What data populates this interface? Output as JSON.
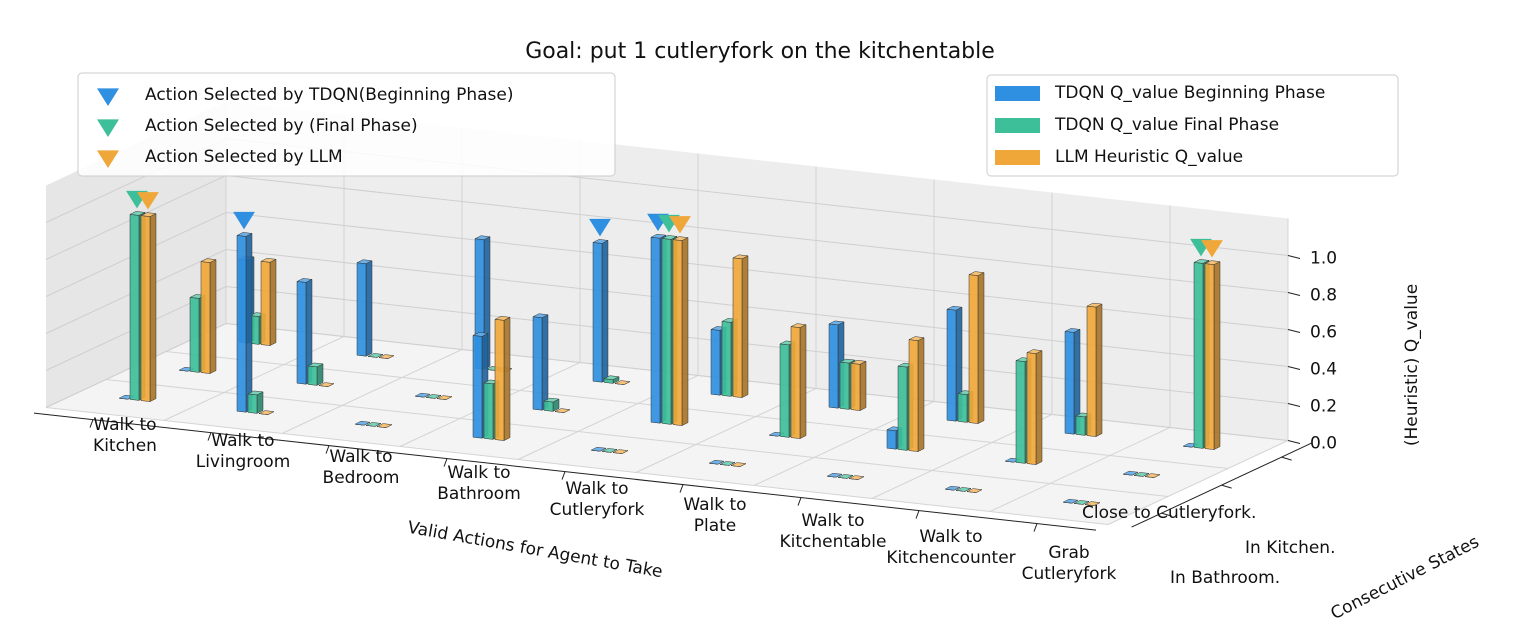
{
  "chart_data": {
    "type": "bar3d",
    "title": "Goal: put 1 cutleryfork on the kitchentable",
    "x_label": "Valid Actions for Agent to Take",
    "y_label": "Consecutive States",
    "z_label": "(Heuristic) Q_value",
    "categories": [
      "Walk to Kitchen",
      "Walk to Livingroom",
      "Walk to Bedroom",
      "Walk to Bathroom",
      "Walk to Cutleryfork",
      "Walk to Plate",
      "Walk to Kitchentable",
      "Walk to Kitchencounter",
      "Grab Cutleryfork"
    ],
    "states": [
      "In Bathroom.",
      "In Kitchen.",
      "Close to Cutleryfork."
    ],
    "series": [
      {
        "name": "TDQN Q_value Beginning Phase",
        "color": "#2f8fe0",
        "values": [
          [
            0,
            0.95,
            0,
            0.55,
            0,
            0,
            0,
            0,
            0
          ],
          [
            0,
            0.55,
            0,
            0.5,
            1.0,
            0,
            0.1,
            0,
            0
          ],
          [
            0.45,
            0.5,
            0.7,
            0.75,
            0.35,
            0.45,
            0.6,
            0.55,
            0
          ]
        ]
      },
      {
        "name": "TDQN Q_value Final Phase",
        "color": "#3dbf9a",
        "values": [
          [
            1.0,
            0.1,
            0,
            0.3,
            0,
            0,
            0,
            0,
            0
          ],
          [
            0.4,
            0.1,
            0,
            0.05,
            1.0,
            0.5,
            0.45,
            0.55,
            0
          ],
          [
            0.15,
            0,
            0,
            0.02,
            0.4,
            0.25,
            0.15,
            0.1,
            1.0
          ]
        ]
      },
      {
        "name": "LLM Heuristic Q_value",
        "color": "#f0a73a",
        "values": [
          [
            1.0,
            0,
            0,
            0.65,
            0,
            0,
            0,
            0,
            0
          ],
          [
            0.6,
            0,
            0,
            0,
            1.0,
            0.6,
            0.6,
            0.6,
            0
          ],
          [
            0.45,
            0,
            0,
            0,
            0.75,
            0.25,
            0.8,
            0.7,
            1.0
          ]
        ]
      }
    ],
    "markers": [
      {
        "name": "Action Selected by TDQN(Beginning Phase)",
        "color": "#2f8fe0",
        "selected": [
          "Walk to Livingroom",
          "Walk to Cutleryfork",
          "Walk to Bathroom"
        ]
      },
      {
        "name": "Action Selected by (Final Phase)",
        "color": "#3dbf9a",
        "selected": [
          "Walk to Kitchen",
          "Walk to Cutleryfork",
          "Grab Cutleryfork"
        ]
      },
      {
        "name": "Action Selected by LLM",
        "color": "#f0a73a",
        "selected": [
          "Walk to Kitchen",
          "Walk to Cutleryfork",
          "Grab Cutleryfork"
        ]
      }
    ],
    "zlim": [
      0,
      1.2
    ],
    "zticks": [
      {
        "value": 0,
        "label": "0.0"
      },
      0.2,
      0.4,
      0.6,
      0.8,
      {
        "value": 1,
        "label": "1.0"
      }
    ],
    "grid": true
  }
}
